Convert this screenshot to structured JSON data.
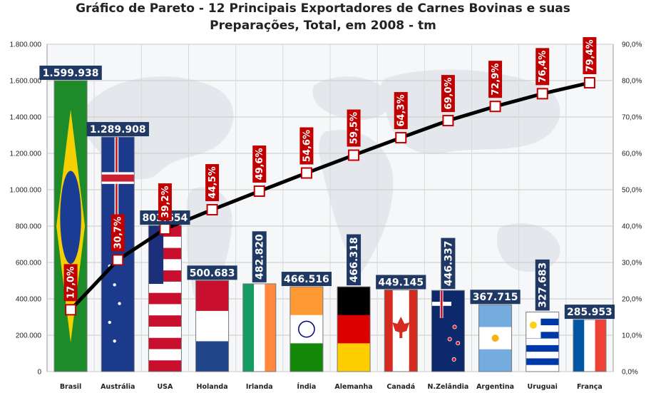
{
  "chart_data": {
    "type": "bar",
    "title_line1": "Gráfico de Pareto - 12 Principais Exportadores de Carnes Bovinas e suas",
    "title_line2": "Preparações, Total,  em 2008 -   tm",
    "categories": [
      "Brasil",
      "Austrália",
      "USA",
      "Holanda",
      "Irlanda",
      "Índia",
      "Alemanha",
      "Canadá",
      "N.Zelândia",
      "Argentina",
      "Uruguai",
      "França"
    ],
    "value_labels": [
      "1.599.938",
      "1.289.908",
      "803.654",
      "500.683",
      "482.820",
      "466.516",
      "466.318",
      "449.145",
      "446.337",
      "367.715",
      "327.683",
      "285.953"
    ],
    "values": [
      1599938,
      1289908,
      803654,
      500683,
      482820,
      466516,
      466318,
      449145,
      446337,
      367715,
      327683,
      285953
    ],
    "cumulative_labels": [
      "17,0%",
      "30,7%",
      "39,2%",
      "44,5%",
      "49,6%",
      "54,6%",
      "59,5%",
      "64,3%",
      "69,0%",
      "72,9%",
      "76,4%",
      "79,4%"
    ],
    "cumulative_pct": [
      17.0,
      30.7,
      39.2,
      44.5,
      49.6,
      54.6,
      59.5,
      64.3,
      69.0,
      72.9,
      76.4,
      79.4
    ],
    "ylim": [
      0,
      1800000
    ],
    "y2lim": [
      0,
      90
    ],
    "yticks": [
      0,
      200000,
      400000,
      600000,
      800000,
      1000000,
      1200000,
      1400000,
      1600000,
      1800000
    ],
    "ytick_labels": [
      "0",
      "200.000",
      "400.000",
      "600.000",
      "800.000",
      "1.000.000",
      "1.200.000",
      "1.400.000",
      "1.600.000",
      "1.800.000"
    ],
    "y2ticks": [
      0,
      10,
      20,
      30,
      40,
      50,
      60,
      70,
      80,
      90
    ],
    "y2tick_labels": [
      "0,0%",
      "10,0%",
      "20,0%",
      "30,0%",
      "40,0%",
      "50,0%",
      "60,0%",
      "70,0%",
      "80,0%",
      "90,0%"
    ],
    "vertical_value_label": [
      false,
      false,
      false,
      false,
      true,
      false,
      true,
      false,
      true,
      false,
      true,
      false
    ],
    "grid": true,
    "colors": {
      "value_label_bg": "#1f3864",
      "pct_label_bg": "#c00000",
      "line": "#000000",
      "marker_fill": "#ffffff",
      "marker_stroke": "#c00000"
    }
  }
}
